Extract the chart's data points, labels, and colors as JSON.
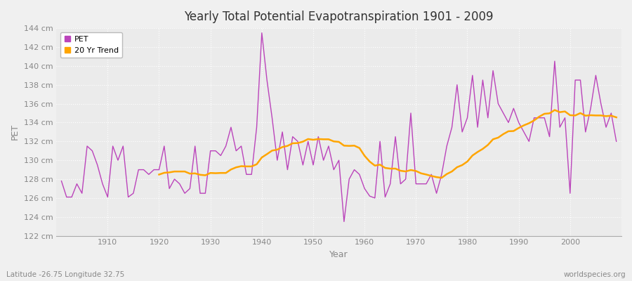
{
  "title": "Yearly Total Potential Evapotranspiration 1901 - 2009",
  "xlabel": "Year",
  "ylabel": "PET",
  "subtitle": "Latitude -26.75 Longitude 32.75",
  "watermark": "worldspecies.org",
  "bg_color": "#f0f0f0",
  "plot_bg_color": "#ebebeb",
  "pet_color": "#bb44bb",
  "trend_color": "#ffa500",
  "tick_color": "#888888",
  "ylim": [
    122,
    144
  ],
  "ytick_step": 2,
  "years": [
    1901,
    1902,
    1903,
    1904,
    1905,
    1906,
    1907,
    1908,
    1909,
    1910,
    1911,
    1912,
    1913,
    1914,
    1915,
    1916,
    1917,
    1918,
    1919,
    1920,
    1921,
    1922,
    1923,
    1924,
    1925,
    1926,
    1927,
    1928,
    1929,
    1930,
    1931,
    1932,
    1933,
    1934,
    1935,
    1936,
    1937,
    1938,
    1939,
    1940,
    1941,
    1942,
    1943,
    1944,
    1945,
    1946,
    1947,
    1948,
    1949,
    1950,
    1951,
    1952,
    1953,
    1954,
    1955,
    1956,
    1957,
    1958,
    1959,
    1960,
    1961,
    1962,
    1963,
    1964,
    1965,
    1966,
    1967,
    1968,
    1969,
    1970,
    1971,
    1972,
    1973,
    1974,
    1975,
    1976,
    1977,
    1978,
    1979,
    1980,
    1981,
    1982,
    1983,
    1984,
    1985,
    1986,
    1987,
    1988,
    1989,
    1990,
    1991,
    1992,
    1993,
    1994,
    1995,
    1996,
    1997,
    1998,
    1999,
    2000,
    2001,
    2002,
    2003,
    2004,
    2005,
    2006,
    2007,
    2008,
    2009
  ],
  "pet_values": [
    127.8,
    126.1,
    126.1,
    127.5,
    126.5,
    131.5,
    131.0,
    129.5,
    127.5,
    126.1,
    131.5,
    130.0,
    131.5,
    126.1,
    126.5,
    129.0,
    129.0,
    128.5,
    129.0,
    129.0,
    131.5,
    127.0,
    128.0,
    127.5,
    126.5,
    127.0,
    131.5,
    126.5,
    126.5,
    131.0,
    131.0,
    130.5,
    131.5,
    133.5,
    131.0,
    131.5,
    128.5,
    128.5,
    133.5,
    143.5,
    138.5,
    134.5,
    130.0,
    133.0,
    129.0,
    132.5,
    132.0,
    129.5,
    132.0,
    129.5,
    132.5,
    130.0,
    131.5,
    129.0,
    130.0,
    123.5,
    128.0,
    129.0,
    128.5,
    127.0,
    126.2,
    126.0,
    132.0,
    126.1,
    127.5,
    132.5,
    127.5,
    128.0,
    135.0,
    127.5,
    127.5,
    127.5,
    128.5,
    126.5,
    128.5,
    131.5,
    133.5,
    138.0,
    133.0,
    134.5,
    139.0,
    133.5,
    138.5,
    134.5,
    139.5,
    136.0,
    135.0,
    134.0,
    135.5,
    134.0,
    133.0,
    132.0,
    134.5,
    134.5,
    134.5,
    132.5,
    140.5,
    133.5,
    134.5,
    126.5,
    138.5,
    138.5,
    133.0,
    135.5,
    139.0,
    136.0,
    133.5,
    135.0,
    132.0
  ]
}
